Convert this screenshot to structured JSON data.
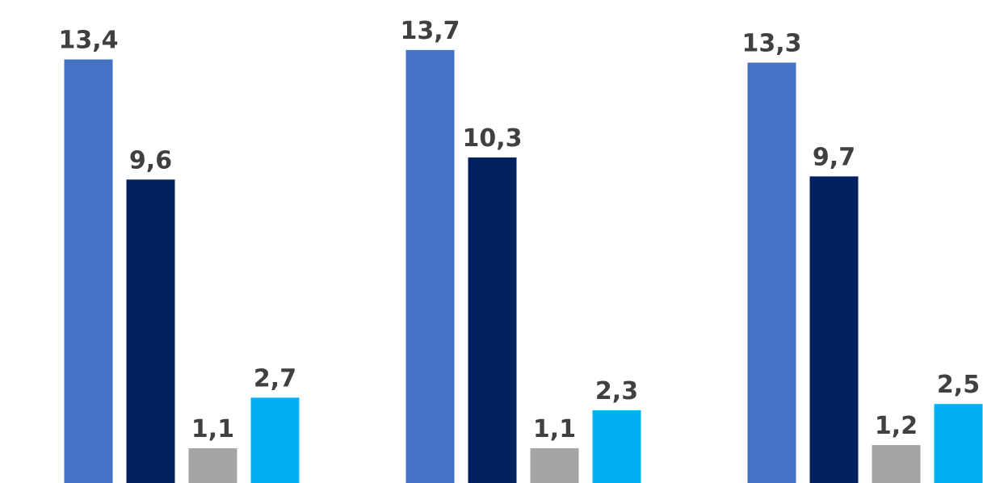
{
  "chart_data": {
    "type": "bar",
    "categories": [
      null,
      null,
      null
    ],
    "series": [
      {
        "color": "#4472c4",
        "values": [
          13.4,
          13.7,
          13.3
        ],
        "value_labels": [
          "13,4",
          "13,7",
          "13,3"
        ]
      },
      {
        "color": "#002060",
        "values": [
          9.6,
          10.3,
          9.7
        ],
        "value_labels": [
          "9,6",
          "10,3",
          "9,7"
        ]
      },
      {
        "color": "#a5a5a5",
        "values": [
          1.1,
          1.1,
          1.2
        ],
        "value_labels": [
          "1,1",
          "1,1",
          "1,2"
        ]
      },
      {
        "color": "#00b0f0",
        "values": [
          2.7,
          2.3,
          2.5
        ],
        "value_labels": [
          "2,7",
          "2,3",
          "2,5"
        ]
      }
    ],
    "ylim": [
      0,
      15
    ]
  }
}
